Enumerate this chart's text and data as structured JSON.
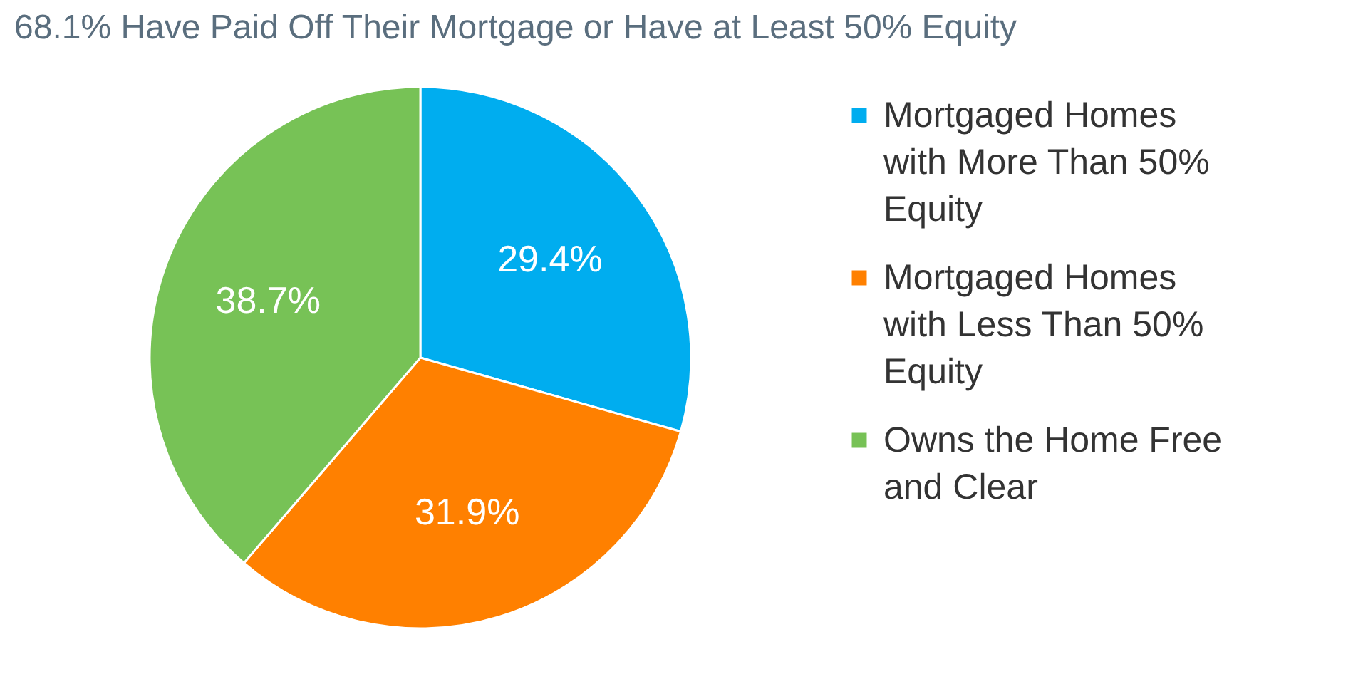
{
  "chart_data": {
    "type": "pie",
    "title": "68.1% Have Paid Off Their Mortgage or Have at Least 50% Equity",
    "categories": [
      "Mortgaged Homes with More Than 50% Equity",
      "Mortgaged Homes with Less Than 50% Equity",
      "Owns the Home Free and Clear"
    ],
    "values": [
      29.4,
      31.9,
      38.7
    ],
    "colors": [
      "#00adef",
      "#ff8000",
      "#77c256"
    ],
    "value_labels": [
      "29.4%",
      "31.9%",
      "38.7%"
    ],
    "legend": "right"
  }
}
